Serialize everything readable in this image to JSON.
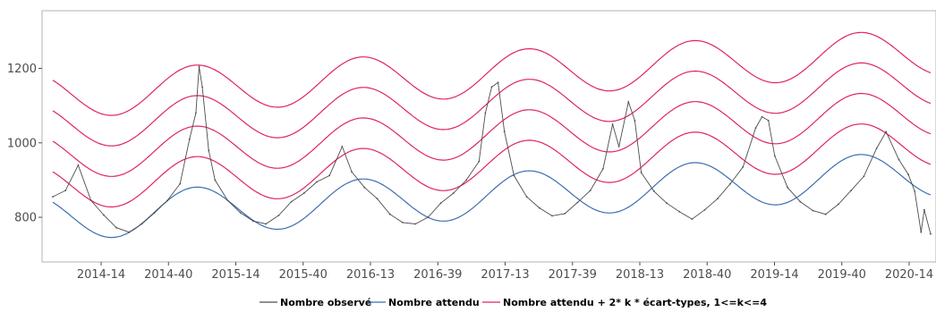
{
  "chart_data": {
    "type": "line",
    "x_tick_labels": [
      "2014-14",
      "2014-40",
      "2015-14",
      "2015-40",
      "2016-13",
      "2016-39",
      "2017-13",
      "2017-39",
      "2018-13",
      "2018-40",
      "2019-14",
      "2019-40",
      "2020-14"
    ],
    "y_ticks": [
      800,
      1000,
      1200
    ],
    "ylim": [
      680,
      1355
    ],
    "grid": false,
    "legend_position": "bottom",
    "series_styles": [
      {
        "name": "Nombre observé",
        "color": "#4d4d4d"
      },
      {
        "name": "Nombre attendu",
        "color": "#3a6fb0"
      },
      {
        "name": "Nombre attendu + 2* k * écart-types, 1<=k<=4",
        "color": "#e0245e"
      }
    ],
    "expected_model": {
      "description_units": "count per week; week index 0 = first plotted week",
      "base": 800,
      "trend_per_week": 0.42,
      "amplitude": 62,
      "period_weeks": 52.18,
      "peak_week": 45,
      "band_step": 82,
      "band_count": 4
    },
    "observed": [
      {
        "week": 0,
        "value": 855
      },
      {
        "week": 4,
        "value": 872
      },
      {
        "week": 8,
        "value": 940
      },
      {
        "week": 12,
        "value": 845
      },
      {
        "week": 16,
        "value": 806
      },
      {
        "week": 20,
        "value": 772
      },
      {
        "week": 24,
        "value": 760
      },
      {
        "week": 28,
        "value": 782
      },
      {
        "week": 32,
        "value": 812
      },
      {
        "week": 36,
        "value": 845
      },
      {
        "week": 40,
        "value": 890
      },
      {
        "week": 43,
        "value": 1010
      },
      {
        "week": 45,
        "value": 1080
      },
      {
        "week": 46,
        "value": 1205
      },
      {
        "week": 47,
        "value": 1150
      },
      {
        "week": 49,
        "value": 980
      },
      {
        "week": 51,
        "value": 900
      },
      {
        "week": 55,
        "value": 845
      },
      {
        "week": 59,
        "value": 812
      },
      {
        "week": 63,
        "value": 790
      },
      {
        "week": 67,
        "value": 782
      },
      {
        "week": 71,
        "value": 805
      },
      {
        "week": 75,
        "value": 842
      },
      {
        "week": 79,
        "value": 865
      },
      {
        "week": 83,
        "value": 895
      },
      {
        "week": 87,
        "value": 912
      },
      {
        "week": 91,
        "value": 990
      },
      {
        "week": 94,
        "value": 922
      },
      {
        "week": 98,
        "value": 880
      },
      {
        "week": 102,
        "value": 850
      },
      {
        "week": 106,
        "value": 808
      },
      {
        "week": 110,
        "value": 786
      },
      {
        "week": 114,
        "value": 782
      },
      {
        "week": 118,
        "value": 800
      },
      {
        "week": 122,
        "value": 838
      },
      {
        "week": 126,
        "value": 865
      },
      {
        "week": 130,
        "value": 900
      },
      {
        "week": 134,
        "value": 950
      },
      {
        "week": 136,
        "value": 1080
      },
      {
        "week": 138,
        "value": 1150
      },
      {
        "week": 140,
        "value": 1162
      },
      {
        "week": 142,
        "value": 1030
      },
      {
        "week": 145,
        "value": 912
      },
      {
        "week": 149,
        "value": 855
      },
      {
        "week": 153,
        "value": 825
      },
      {
        "week": 157,
        "value": 804
      },
      {
        "week": 161,
        "value": 810
      },
      {
        "week": 165,
        "value": 840
      },
      {
        "week": 169,
        "value": 872
      },
      {
        "week": 173,
        "value": 930
      },
      {
        "week": 176,
        "value": 1050
      },
      {
        "week": 178,
        "value": 990
      },
      {
        "week": 181,
        "value": 1110
      },
      {
        "week": 183,
        "value": 1060
      },
      {
        "week": 185,
        "value": 920
      },
      {
        "week": 189,
        "value": 870
      },
      {
        "week": 193,
        "value": 838
      },
      {
        "week": 197,
        "value": 815
      },
      {
        "week": 201,
        "value": 795
      },
      {
        "week": 205,
        "value": 820
      },
      {
        "week": 209,
        "value": 850
      },
      {
        "week": 213,
        "value": 890
      },
      {
        "week": 217,
        "value": 935
      },
      {
        "week": 221,
        "value": 1040
      },
      {
        "week": 223,
        "value": 1070
      },
      {
        "week": 225,
        "value": 1060
      },
      {
        "week": 227,
        "value": 965
      },
      {
        "week": 231,
        "value": 880
      },
      {
        "week": 235,
        "value": 842
      },
      {
        "week": 239,
        "value": 818
      },
      {
        "week": 243,
        "value": 808
      },
      {
        "week": 247,
        "value": 835
      },
      {
        "week": 251,
        "value": 872
      },
      {
        "week": 255,
        "value": 910
      },
      {
        "week": 259,
        "value": 985
      },
      {
        "week": 262,
        "value": 1030
      },
      {
        "week": 266,
        "value": 955
      },
      {
        "week": 269,
        "value": 915
      },
      {
        "week": 271,
        "value": 870
      },
      {
        "week": 273,
        "value": 760
      },
      {
        "week": 274,
        "value": 820
      },
      {
        "week": 276,
        "value": 755
      }
    ]
  },
  "legend": {
    "observed": "Nombre observé",
    "expected": "Nombre attendu",
    "bands": "Nombre attendu + 2* k * écart-types, 1<=k<=4"
  }
}
